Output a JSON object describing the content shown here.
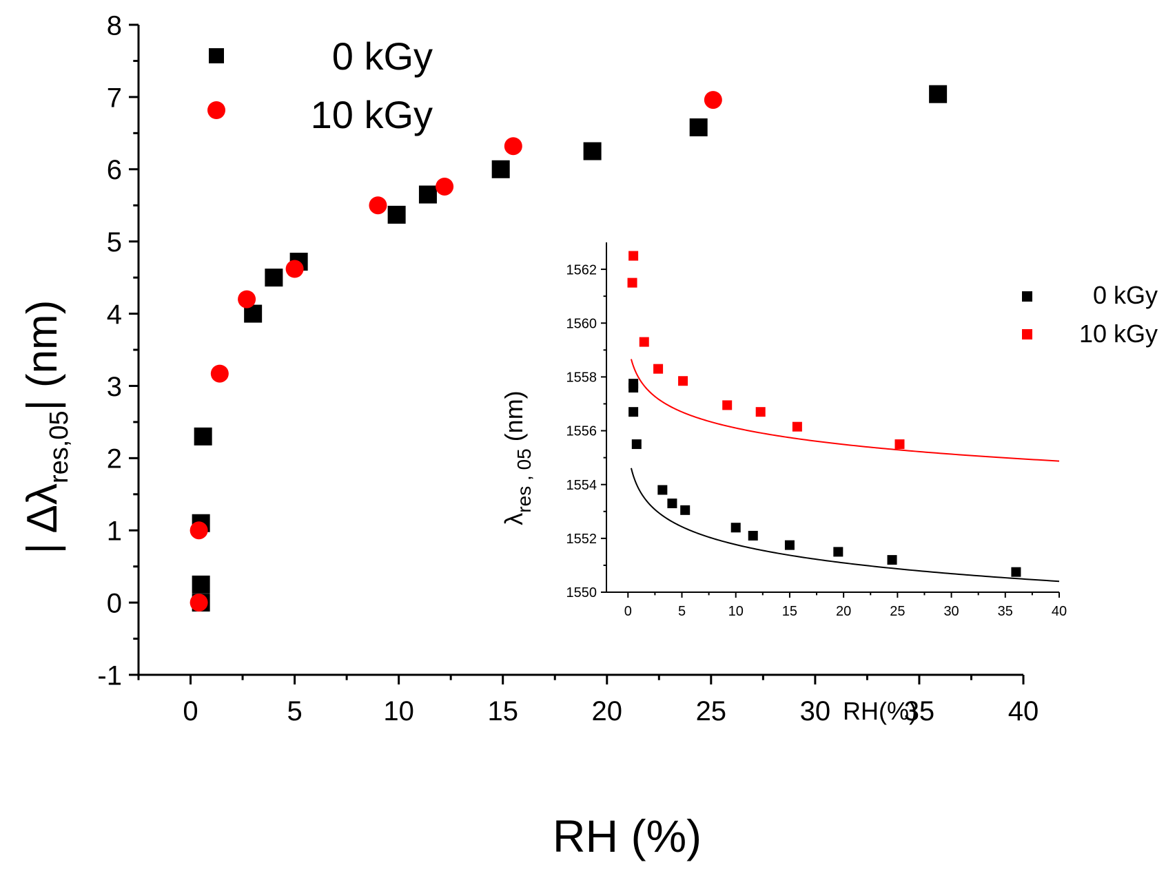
{
  "chart_data": [
    {
      "id": "main",
      "type": "scatter",
      "xlabel": "RH (%)",
      "ylabel": {
        "prefix": "| Δλ",
        "subscript": "res,05",
        "suffix": "| (nm)"
      },
      "xlim": [
        -2.5,
        40
      ],
      "ylim": [
        -1,
        8
      ],
      "xticks": [
        0,
        5,
        10,
        15,
        20,
        25,
        30,
        35,
        40
      ],
      "yticks": [
        -1,
        0,
        1,
        2,
        3,
        4,
        5,
        6,
        7,
        8
      ],
      "legend": {
        "position": "top-left",
        "entries": [
          "0 kGy",
          "10 kGy"
        ]
      },
      "series": [
        {
          "name": "0 kGy",
          "marker": "square",
          "color": "#000000",
          "points": [
            [
              0.5,
              0.0
            ],
            [
              0.5,
              0.25
            ],
            [
              0.5,
              1.1
            ],
            [
              0.6,
              2.3
            ],
            [
              3.0,
              4.0
            ],
            [
              4.0,
              4.5
            ],
            [
              5.2,
              4.72
            ],
            [
              9.9,
              5.37
            ],
            [
              11.4,
              5.65
            ],
            [
              14.9,
              6.0
            ],
            [
              19.3,
              6.25
            ],
            [
              24.4,
              6.58
            ],
            [
              35.9,
              7.04
            ]
          ]
        },
        {
          "name": "10 kGy",
          "marker": "circle",
          "color": "#ff0000",
          "points": [
            [
              0.4,
              0.0
            ],
            [
              0.4,
              1.0
            ],
            [
              1.4,
              3.17
            ],
            [
              2.7,
              4.2
            ],
            [
              5.0,
              4.62
            ],
            [
              9.0,
              5.5
            ],
            [
              12.2,
              5.76
            ],
            [
              15.5,
              6.32
            ],
            [
              25.1,
              6.96
            ]
          ]
        }
      ]
    },
    {
      "id": "inset",
      "type": "scatter",
      "xlabel": "RH(%)",
      "ylabel": {
        "prefix": "λ",
        "subscript": "res , 05",
        "suffix": " (nm)"
      },
      "xlim": [
        -2,
        40
      ],
      "ylim": [
        1550,
        1563
      ],
      "xticks": [
        0,
        5,
        10,
        15,
        20,
        25,
        30,
        35,
        40
      ],
      "yticks": [
        1550,
        1552,
        1554,
        1556,
        1558,
        1560,
        1562
      ],
      "legend": {
        "position": "top-right",
        "entries": [
          "0 kGy",
          "10 kGy"
        ]
      },
      "series": [
        {
          "name": "0 kGy",
          "marker": "square",
          "color": "#000000",
          "points": [
            [
              0.5,
              1557.75
            ],
            [
              0.5,
              1557.6
            ],
            [
              0.5,
              1556.7
            ],
            [
              0.8,
              1555.5
            ],
            [
              3.2,
              1553.8
            ],
            [
              4.1,
              1553.3
            ],
            [
              5.3,
              1553.05
            ],
            [
              10.0,
              1552.4
            ],
            [
              11.6,
              1552.1
            ],
            [
              15.0,
              1551.75
            ],
            [
              19.5,
              1551.5
            ],
            [
              24.5,
              1551.2
            ],
            [
              36.0,
              1550.75
            ]
          ],
          "fit": {
            "model": "log",
            "a": 1554.1,
            "b": -1.0,
            "x0": 0.3,
            "x_range": [
              0.3,
              40
            ]
          }
        },
        {
          "name": "10 kGy",
          "marker": "square",
          "color": "#ff0000",
          "points": [
            [
              0.5,
              1562.5
            ],
            [
              0.4,
              1561.5
            ],
            [
              1.5,
              1559.3
            ],
            [
              2.8,
              1558.3
            ],
            [
              5.1,
              1557.85
            ],
            [
              9.2,
              1556.95
            ],
            [
              12.3,
              1556.7
            ],
            [
              15.7,
              1556.15
            ],
            [
              25.2,
              1555.5
            ]
          ],
          "fit": {
            "model": "log",
            "a": 1558.2,
            "b": -0.9,
            "x0": 0.3,
            "x_range": [
              0.3,
              40
            ]
          }
        }
      ]
    }
  ]
}
